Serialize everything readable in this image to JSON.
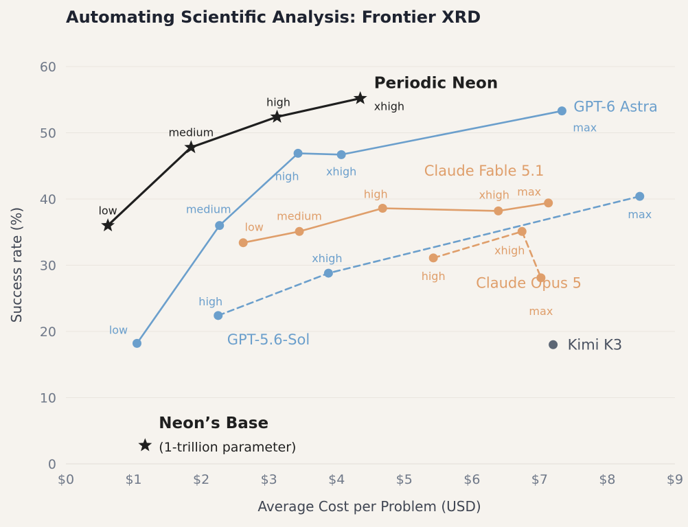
{
  "chart_data": {
    "type": "scatter",
    "title": "Automating Scientific Analysis: Frontier XRD",
    "xlabel": "Average Cost per Problem (USD)",
    "ylabel": "Success rate (%)",
    "xlim": [
      0,
      9
    ],
    "ylim": [
      0,
      60
    ],
    "x_ticks": [
      {
        "value": 0,
        "label": "$0"
      },
      {
        "value": 1,
        "label": "$1"
      },
      {
        "value": 2,
        "label": "$2"
      },
      {
        "value": 3,
        "label": "$3"
      },
      {
        "value": 4,
        "label": "$4"
      },
      {
        "value": 5,
        "label": "$5"
      },
      {
        "value": 6,
        "label": "$6"
      },
      {
        "value": 7,
        "label": "$7"
      },
      {
        "value": 8,
        "label": "$8"
      },
      {
        "value": 9,
        "label": "$9"
      }
    ],
    "y_ticks": [
      {
        "value": 0,
        "label": "0"
      },
      {
        "value": 10,
        "label": "10"
      },
      {
        "value": 20,
        "label": "20"
      },
      {
        "value": 30,
        "label": "30"
      },
      {
        "value": 40,
        "label": "40"
      },
      {
        "value": 50,
        "label": "50"
      },
      {
        "value": 60,
        "label": "60"
      }
    ],
    "grid": "horizontal",
    "legend": "none",
    "series": [
      {
        "name": "Periodic Neon",
        "color": "#1f1f1f",
        "marker": "star",
        "line": "solid",
        "points": [
          {
            "x": 0.62,
            "y": 36.0,
            "label": "low"
          },
          {
            "x": 1.85,
            "y": 47.8,
            "label": "medium"
          },
          {
            "x": 3.12,
            "y": 52.4,
            "label": "high"
          },
          {
            "x": 4.35,
            "y": 55.2,
            "label": "xhigh"
          }
        ]
      },
      {
        "name": "GPT-6 Astra",
        "color": "#6b9fcc",
        "marker": "circle",
        "line": "solid",
        "points": [
          {
            "x": 1.05,
            "y": 18.2,
            "label": "low"
          },
          {
            "x": 2.27,
            "y": 36.0,
            "label": "medium"
          },
          {
            "x": 3.43,
            "y": 46.9,
            "label": "high"
          },
          {
            "x": 4.07,
            "y": 46.7,
            "label": "xhigh"
          },
          {
            "x": 7.33,
            "y": 53.3,
            "label": "max"
          }
        ]
      },
      {
        "name": "GPT-5.6-Sol",
        "color": "#6b9fcc",
        "marker": "circle",
        "line": "dashed",
        "points": [
          {
            "x": 2.25,
            "y": 22.4,
            "label": "high"
          },
          {
            "x": 3.88,
            "y": 28.8,
            "label": "xhigh"
          },
          {
            "x": 8.48,
            "y": 40.4,
            "label": "max"
          }
        ]
      },
      {
        "name": "Claude Fable 5.1",
        "color": "#df9e6a",
        "marker": "circle",
        "line": "solid",
        "points": [
          {
            "x": 2.62,
            "y": 33.4,
            "label": "low"
          },
          {
            "x": 3.45,
            "y": 35.1,
            "label": "medium"
          },
          {
            "x": 4.68,
            "y": 38.6,
            "label": "high"
          },
          {
            "x": 6.39,
            "y": 38.2,
            "label": "xhigh"
          },
          {
            "x": 7.13,
            "y": 39.4,
            "label": "max"
          }
        ]
      },
      {
        "name": "Claude Opus 5",
        "color": "#df9e6a",
        "marker": "circle",
        "line": "dashed",
        "points": [
          {
            "x": 5.43,
            "y": 31.1,
            "label": "high"
          },
          {
            "x": 6.74,
            "y": 35.1,
            "label": "xhigh"
          },
          {
            "x": 7.02,
            "y": 28.1,
            "label": "max"
          }
        ]
      },
      {
        "name": "Kimi K3",
        "color": "#5c6674",
        "marker": "circle",
        "line": "none",
        "points": [
          {
            "x": 7.2,
            "y": 18.0,
            "label": ""
          }
        ]
      },
      {
        "name": "Neon’s Base",
        "subtitle": "(1-trillion parameter)",
        "color": "#1f1f1f",
        "marker": "star",
        "line": "none",
        "points": [
          {
            "x": 1.17,
            "y": 2.8,
            "label": ""
          }
        ]
      }
    ]
  }
}
